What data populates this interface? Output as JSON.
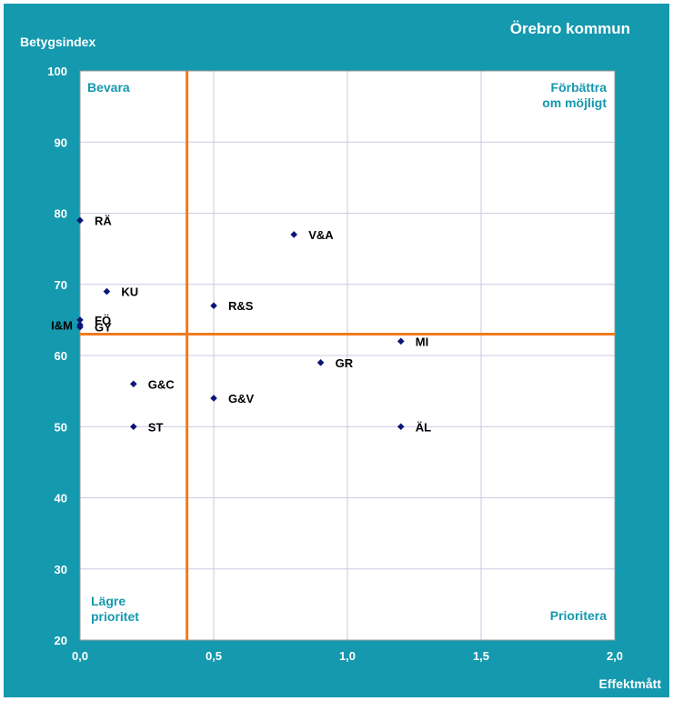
{
  "colors": {
    "frame": "#1499AE",
    "plot_bg": "#FFFFFF",
    "grid": "#C9C9E6",
    "quadrant_line": "#F07B1E",
    "point": "#0B1577",
    "corner_text": "#1499AE",
    "label_text": "#000000",
    "axis_text": "#FFFFFF"
  },
  "chart_data": {
    "type": "scatter",
    "title": "Örebro kommun",
    "xlabel": "Effektmått",
    "ylabel": "Betygsindex",
    "xlim": [
      0,
      2
    ],
    "ylim": [
      20,
      100
    ],
    "x_ticks": [
      0,
      0.5,
      1,
      1.5,
      2
    ],
    "x_tick_labels": [
      "0,0",
      "0,5",
      "1,0",
      "1,5",
      "2,0"
    ],
    "y_ticks": [
      20,
      30,
      40,
      50,
      60,
      70,
      80,
      90,
      100
    ],
    "y_tick_labels": [
      "20",
      "30",
      "40",
      "50",
      "60",
      "70",
      "80",
      "90",
      "100"
    ],
    "grid": true,
    "quadrant_lines": {
      "x": 0.4,
      "y": 63
    },
    "quadrant_labels": {
      "top_left": [
        "Bevara"
      ],
      "top_right": [
        "Förbättra",
        "om möjligt"
      ],
      "bottom_left": [
        "Lägre",
        "prioritet"
      ],
      "bottom_right": [
        "Prioritera"
      ]
    },
    "points": [
      {
        "label": "RÄ",
        "x": 0.0,
        "y": 79
      },
      {
        "label": "V&A",
        "x": 0.8,
        "y": 77
      },
      {
        "label": "KU",
        "x": 0.1,
        "y": 69
      },
      {
        "label": "R&S",
        "x": 0.5,
        "y": 67
      },
      {
        "label": "FÖ",
        "x": 0.0,
        "y": 65
      },
      {
        "label": "I&M",
        "x": 0.0,
        "y": 64.3
      },
      {
        "label": "GY",
        "x": 0.0,
        "y": 64
      },
      {
        "label": "MI",
        "x": 1.2,
        "y": 62
      },
      {
        "label": "GR",
        "x": 0.9,
        "y": 59
      },
      {
        "label": "G&C",
        "x": 0.2,
        "y": 56
      },
      {
        "label": "G&V",
        "x": 0.5,
        "y": 54
      },
      {
        "label": "ST",
        "x": 0.2,
        "y": 50
      },
      {
        "label": "ÄL",
        "x": 1.2,
        "y": 50
      }
    ]
  }
}
